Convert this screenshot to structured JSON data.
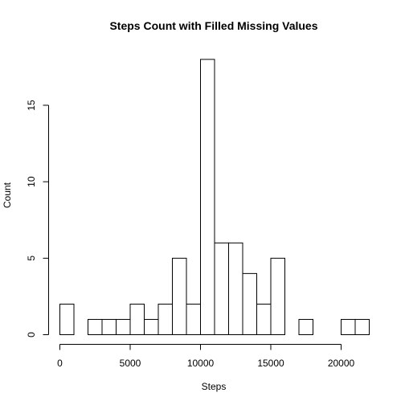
{
  "chart_data": {
    "type": "bar",
    "title": "Steps Count with Filled Missing Values",
    "xlabel": "Steps",
    "ylabel": "Count",
    "bin_width": 1000,
    "bins": [
      {
        "start": 0,
        "count": 2
      },
      {
        "start": 1000,
        "count": 0
      },
      {
        "start": 2000,
        "count": 1
      },
      {
        "start": 3000,
        "count": 1
      },
      {
        "start": 4000,
        "count": 1
      },
      {
        "start": 5000,
        "count": 2
      },
      {
        "start": 6000,
        "count": 1
      },
      {
        "start": 7000,
        "count": 2
      },
      {
        "start": 8000,
        "count": 5
      },
      {
        "start": 9000,
        "count": 2
      },
      {
        "start": 10000,
        "count": 18
      },
      {
        "start": 11000,
        "count": 6
      },
      {
        "start": 12000,
        "count": 6
      },
      {
        "start": 13000,
        "count": 4
      },
      {
        "start": 14000,
        "count": 2
      },
      {
        "start": 15000,
        "count": 5
      },
      {
        "start": 16000,
        "count": 0
      },
      {
        "start": 17000,
        "count": 1
      },
      {
        "start": 18000,
        "count": 0
      },
      {
        "start": 19000,
        "count": 0
      },
      {
        "start": 20000,
        "count": 1
      },
      {
        "start": 21000,
        "count": 1
      }
    ],
    "xlim": [
      0,
      22000
    ],
    "ylim": [
      0,
      18
    ],
    "x_ticks": [
      "0",
      "5000",
      "10000",
      "15000",
      "20000"
    ],
    "y_ticks": [
      "0",
      "5",
      "10",
      "15"
    ],
    "grid": false,
    "colors": {
      "bar_fill": "#ffffff",
      "bar_stroke": "#000000"
    }
  }
}
